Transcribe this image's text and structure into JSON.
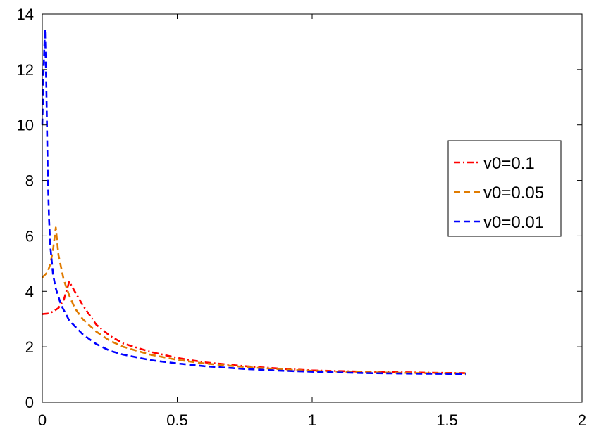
{
  "chart_data": {
    "type": "line",
    "title": "",
    "xlabel": "",
    "ylabel": "",
    "xlim": [
      0,
      2
    ],
    "ylim": [
      0,
      14
    ],
    "x_ticks": [
      "0",
      "0.5",
      "1",
      "1.5",
      "2"
    ],
    "y_ticks": [
      "0",
      "2",
      "4",
      "6",
      "8",
      "10",
      "12",
      "14"
    ],
    "grid": false,
    "legend_position": "right",
    "series": [
      {
        "name": "v0=0.1",
        "color": "#ff0000",
        "dash": "dash-dot",
        "x": [
          0.0,
          0.02,
          0.04,
          0.06,
          0.08,
          0.1,
          0.12,
          0.15,
          0.2,
          0.25,
          0.3,
          0.4,
          0.5,
          0.6,
          0.75,
          0.9,
          1.0,
          1.2,
          1.4,
          1.57
        ],
        "y": [
          3.18,
          3.2,
          3.27,
          3.4,
          3.7,
          4.35,
          4.0,
          3.5,
          2.8,
          2.4,
          2.12,
          1.82,
          1.6,
          1.44,
          1.3,
          1.2,
          1.15,
          1.1,
          1.07,
          1.05
        ]
      },
      {
        "name": "v0=0.05",
        "color": "#e07b00",
        "dash": "dashed",
        "x": [
          0.0,
          0.02,
          0.03,
          0.04,
          0.05,
          0.06,
          0.08,
          0.1,
          0.12,
          0.15,
          0.2,
          0.25,
          0.3,
          0.4,
          0.5,
          0.6,
          0.75,
          0.9,
          1.0,
          1.2,
          1.4,
          1.57
        ],
        "y": [
          4.5,
          4.7,
          5.0,
          5.5,
          6.3,
          5.3,
          4.4,
          3.85,
          3.4,
          3.0,
          2.55,
          2.22,
          2.0,
          1.72,
          1.53,
          1.4,
          1.27,
          1.18,
          1.13,
          1.08,
          1.05,
          1.04
        ]
      },
      {
        "name": "v0=0.01",
        "color": "#0000ff",
        "dash": "dashed",
        "x": [
          0.0,
          0.005,
          0.01,
          0.015,
          0.02,
          0.025,
          0.03,
          0.04,
          0.05,
          0.07,
          0.1,
          0.15,
          0.2,
          0.25,
          0.3,
          0.4,
          0.5,
          0.6,
          0.75,
          0.9,
          1.0,
          1.2,
          1.4,
          1.57
        ],
        "y": [
          10.0,
          12.0,
          13.45,
          11.5,
          8.3,
          6.6,
          5.6,
          4.6,
          4.1,
          3.5,
          2.95,
          2.45,
          2.1,
          1.86,
          1.72,
          1.52,
          1.4,
          1.3,
          1.2,
          1.13,
          1.1,
          1.05,
          1.03,
          1.02
        ]
      }
    ]
  }
}
